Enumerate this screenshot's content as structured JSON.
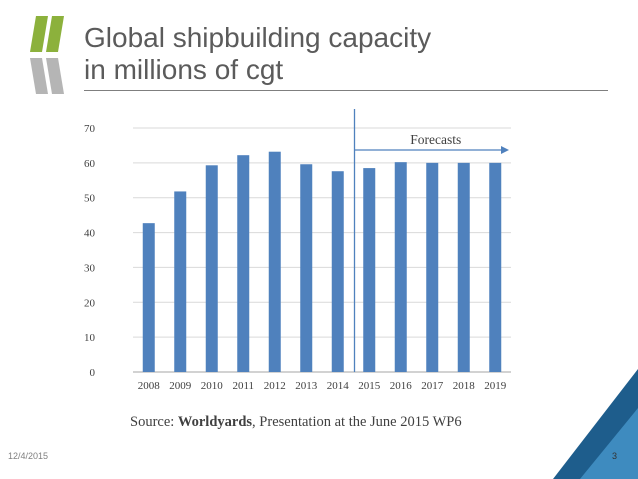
{
  "slide": {
    "title_line1": "Global shipbuilding capacity",
    "title_line2": "in millions of cgt",
    "source_prefix": "Source: ",
    "source_bold": "Worldyards",
    "source_rest": ", Presentation at the June 2015 WP6",
    "date": "12/4/2015",
    "slide_number": "3",
    "colors": {
      "title": "#5b5b5b",
      "logo_green": "#8cb13c",
      "logo_grey": "#b5b5b5",
      "corner_dark": "#1e5d8c",
      "corner_light": "#4a9bd0"
    }
  },
  "chart_data": {
    "type": "bar",
    "categories": [
      "2008",
      "2009",
      "2010",
      "2011",
      "2012",
      "2013",
      "2014",
      "2015",
      "2016",
      "2017",
      "2018",
      "2019"
    ],
    "values": [
      42.7,
      51.8,
      59.3,
      62.2,
      63.2,
      59.6,
      57.6,
      58.5,
      60.2,
      60.0,
      60.0,
      60.0
    ],
    "ylim": [
      0,
      70
    ],
    "yticks": [
      0,
      10,
      20,
      30,
      40,
      50,
      60,
      70
    ],
    "grid": true,
    "bar_color": "#4f81bd",
    "annotation": {
      "text": "Forecasts",
      "start_category": "2015"
    }
  }
}
